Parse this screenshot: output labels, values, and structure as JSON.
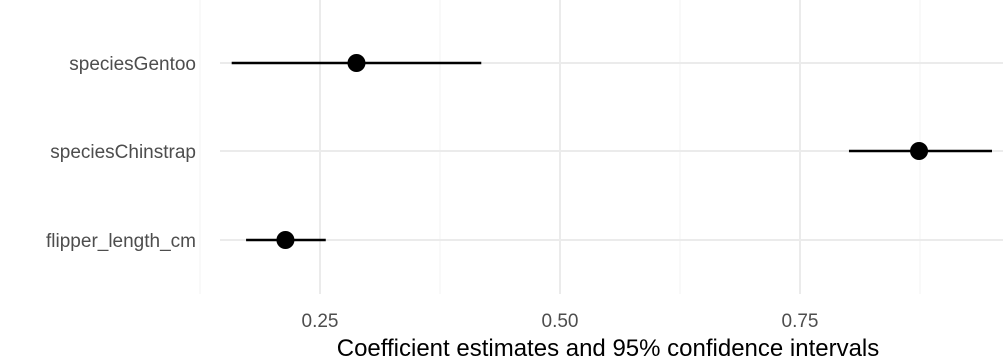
{
  "chart_data": {
    "type": "point-range",
    "xlabel": "Coefficient estimates and 95% confidence intervals",
    "ylabel": "",
    "xlim": [
      0.125,
      0.975
    ],
    "x_ticks": [
      0.25,
      0.5,
      0.75
    ],
    "x_tick_labels": [
      "0.25",
      "0.50",
      "0.75"
    ],
    "x_minor_ticks": [
      0.125,
      0.375,
      0.625,
      0.875
    ],
    "grid": true,
    "categories": [
      "speciesGentoo",
      "speciesChinstrap",
      "flipper_length_cm"
    ],
    "estimates": [
      0.288,
      0.874,
      0.214
    ],
    "ci_lower": [
      0.158,
      0.801,
      0.173
    ],
    "ci_upper": [
      0.418,
      0.95,
      0.256
    ],
    "point_color": "#000000",
    "grid_major_color": "#ebebeb",
    "grid_minor_color": "#f5f5f5"
  }
}
